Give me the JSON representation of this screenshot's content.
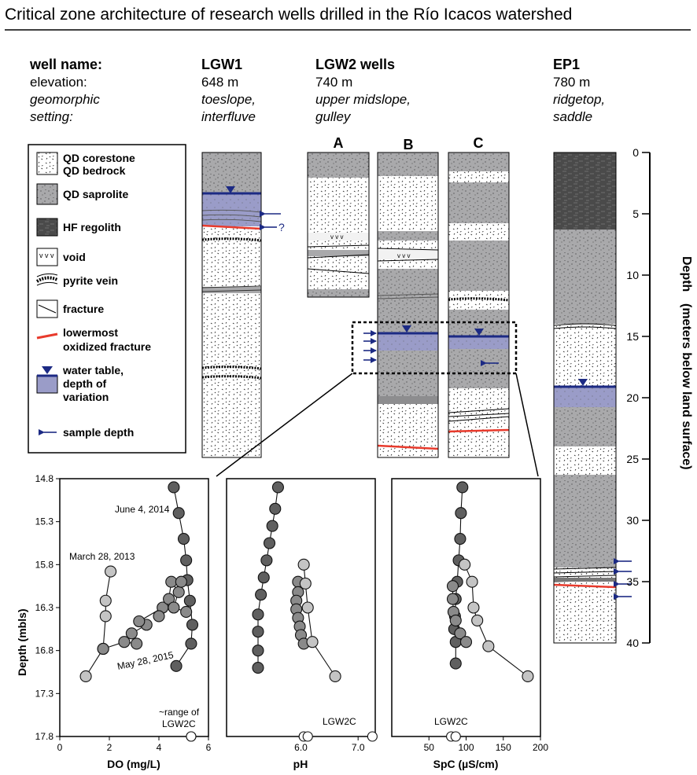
{
  "title": "Critical zone architecture of research wells drilled in the Río Icacos watershed",
  "header": {
    "well_name_label": "well name:",
    "elevation_label": "elevation:",
    "geomorphic_label_1": "geomorphic",
    "geomorphic_label_2": "setting:"
  },
  "wells": {
    "lgw1": {
      "name": "LGW1",
      "elevation": "648 m",
      "setting_1": "toeslope,",
      "setting_2": "interfluve"
    },
    "lgw2": {
      "name": "LGW2 wells",
      "elevation": "740 m",
      "setting_1": "upper midslope,",
      "setting_2": "gulley",
      "sub_a": "A",
      "sub_b": "B",
      "sub_c": "C"
    },
    "ep1": {
      "name": "EP1",
      "elevation": "780 m",
      "setting_1": "ridgetop,",
      "setting_2": "saddle"
    }
  },
  "legend": {
    "corestone_1": "QD corestone",
    "corestone_2": "QD bedrock",
    "saprolite": "QD saprolite",
    "regolith": "HF regolith",
    "void": "void",
    "pyrite": "pyrite vein",
    "fracture": "fracture",
    "oxidized_1": "lowermost",
    "oxidized_2": "oxidized fracture",
    "water_1": "water table,",
    "water_2": "depth of",
    "water_3": "variation",
    "sample": "sample depth",
    "void_glyph": "v v v",
    "question": "?"
  },
  "depth_axis": {
    "label_1": "Depth",
    "label_2": "(meters below land surface)",
    "ticks": [
      "0",
      "5",
      "10",
      "15",
      "20",
      "25",
      "30",
      "35",
      "40"
    ]
  },
  "colors": {
    "saprolite": "#a9a9ab",
    "regolith": "#4a4a4a",
    "water": "#9a9cc8",
    "water_line": "#1c2a84",
    "oxidized": "#e83a2c",
    "arrow": "#1c2a84",
    "dark_point": "#5f5f5f",
    "light_point": "#c4c4c4"
  },
  "chart_data": [
    {
      "type": "scatter",
      "xlabel": "DO (mg/L)",
      "ylabel": "Depth (mbls)",
      "xlim": [
        0,
        6
      ],
      "ylim": [
        17.8,
        14.8
      ],
      "x_ticks": [
        "0",
        "2",
        "4",
        "6"
      ],
      "y_ticks": [
        "14.8",
        "15.3",
        "15.8",
        "16.3",
        "16.8",
        "17.3",
        "17.8"
      ],
      "annotations": [
        "June 4, 2014",
        "March 28, 2013",
        "May 28, 2015",
        "~range of",
        "LGW2C"
      ],
      "series": [
        {
          "name": "March 28, 2013",
          "points": [
            [
              2.05,
              15.88
            ],
            [
              1.85,
              16.22
            ],
            [
              1.85,
              16.4
            ],
            [
              1.75,
              16.78
            ],
            [
              1.05,
              17.1
            ]
          ]
        },
        {
          "name": "June 4, 2014",
          "points": [
            [
              4.6,
              14.9
            ],
            [
              4.8,
              15.2
            ],
            [
              5.0,
              15.5
            ],
            [
              5.1,
              15.75
            ],
            [
              5.15,
              15.98
            ],
            [
              5.25,
              16.22
            ],
            [
              5.35,
              16.5
            ],
            [
              5.3,
              16.72
            ],
            [
              4.7,
              16.98
            ]
          ]
        },
        {
          "name": "May 28, 2015",
          "points": [
            [
              1.75,
              16.78
            ],
            [
              2.6,
              16.7
            ],
            [
              3.1,
              16.72
            ],
            [
              2.9,
              16.6
            ],
            [
              3.5,
              16.5
            ],
            [
              3.2,
              16.46
            ],
            [
              4.15,
              16.3
            ],
            [
              4.0,
              16.4
            ],
            [
              4.4,
              16.2
            ],
            [
              4.5,
              16.0
            ],
            [
              4.8,
              16.12
            ],
            [
              4.9,
              16.0
            ],
            [
              4.6,
              16.3
            ],
            [
              5.1,
              16.35
            ]
          ]
        },
        {
          "name": "range LGW2C",
          "points": [
            [
              5.3,
              17.8
            ],
            [
              5.3,
              17.8
            ]
          ]
        }
      ]
    },
    {
      "type": "scatter",
      "xlabel": "pH",
      "xlim": [
        4.7,
        7.3
      ],
      "ylim": [
        17.8,
        14.8
      ],
      "x_ticks": [
        "6.0",
        "7.0"
      ],
      "annotations": [
        "LGW2C"
      ],
      "series": [
        {
          "name": "dark",
          "points": [
            [
              5.6,
              14.9
            ],
            [
              5.55,
              15.15
            ],
            [
              5.5,
              15.35
            ],
            [
              5.45,
              15.55
            ],
            [
              5.4,
              15.75
            ],
            [
              5.35,
              15.95
            ],
            [
              5.3,
              16.15
            ],
            [
              5.25,
              16.38
            ],
            [
              5.25,
              16.58
            ],
            [
              5.25,
              16.8
            ],
            [
              5.25,
              17.0
            ]
          ]
        },
        {
          "name": "mid",
          "points": [
            [
              5.95,
              16.0
            ],
            [
              5.95,
              16.12
            ],
            [
              5.92,
              16.22
            ],
            [
              5.92,
              16.32
            ],
            [
              5.95,
              16.42
            ],
            [
              5.98,
              16.52
            ],
            [
              6.0,
              16.62
            ],
            [
              6.05,
              16.72
            ]
          ]
        },
        {
          "name": "light",
          "points": [
            [
              6.05,
              15.8
            ],
            [
              6.08,
              16.02
            ],
            [
              6.12,
              16.3
            ],
            [
              6.2,
              16.7
            ],
            [
              6.6,
              17.1
            ]
          ]
        },
        {
          "name": "LGW2C range",
          "points": [
            [
              6.05,
              17.8
            ],
            [
              6.12,
              17.8
            ],
            [
              7.25,
              17.8
            ]
          ]
        }
      ]
    },
    {
      "type": "scatter",
      "xlabel": "SpC (µS/cm)",
      "xlim": [
        0,
        200
      ],
      "ylim": [
        17.8,
        14.8
      ],
      "x_ticks": [
        "50",
        "100",
        "150",
        "200"
      ],
      "annotations": [
        "LGW2C"
      ],
      "series": [
        {
          "name": "dark",
          "points": [
            [
              95,
              14.9
            ],
            [
              93,
              15.2
            ],
            [
              92,
              15.5
            ],
            [
              90,
              15.75
            ],
            [
              88,
              16.0
            ],
            [
              86,
              16.2
            ],
            [
              85,
              16.4
            ],
            [
              84,
              16.55
            ],
            [
              86,
              16.7
            ],
            [
              86,
              16.95
            ]
          ]
        },
        {
          "name": "mid",
          "points": [
            [
              82,
              16.05
            ],
            [
              82,
              16.2
            ],
            [
              83,
              16.35
            ],
            [
              86,
              16.45
            ],
            [
              92,
              16.6
            ],
            [
              100,
              16.7
            ]
          ]
        },
        {
          "name": "light",
          "points": [
            [
              98,
              15.8
            ],
            [
              108,
              16.0
            ],
            [
              110,
              16.3
            ],
            [
              115,
              16.45
            ],
            [
              130,
              16.75
            ],
            [
              183,
              17.1
            ]
          ]
        },
        {
          "name": "LGW2C range",
          "points": [
            [
              80,
              17.8
            ],
            [
              86,
              17.8
            ]
          ]
        }
      ]
    }
  ]
}
